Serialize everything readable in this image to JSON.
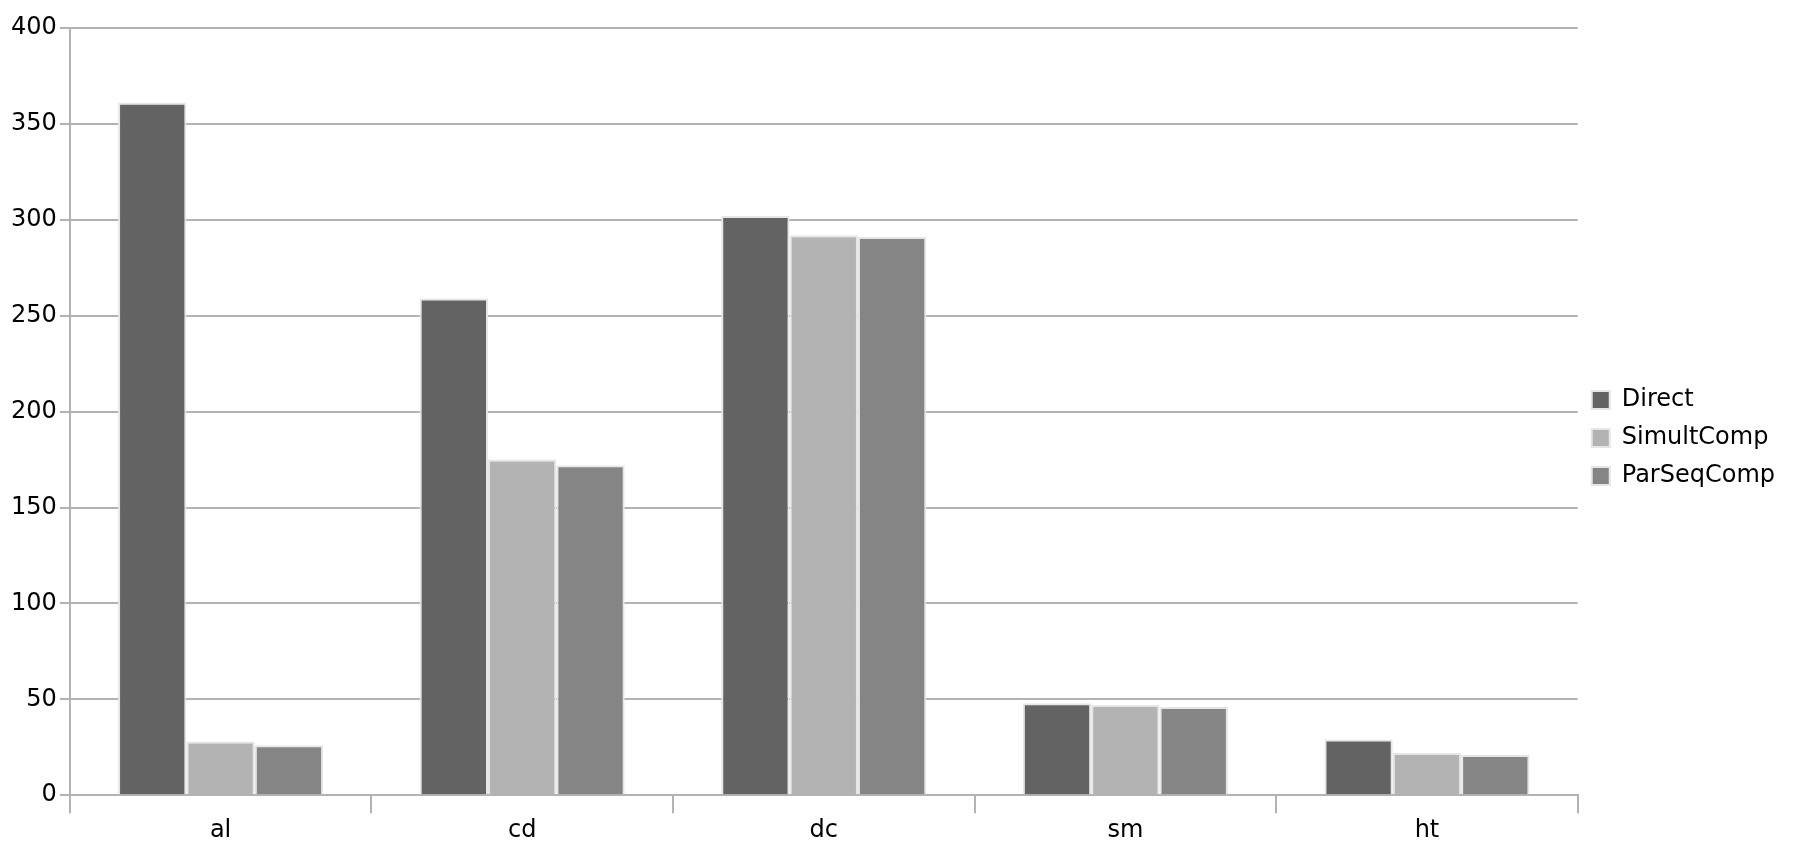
{
  "chart_data": {
    "type": "bar",
    "categories": [
      "al",
      "cd",
      "dc",
      "sm",
      "ht"
    ],
    "series": [
      {
        "name": "Direct",
        "color": "#636363",
        "values": [
          361,
          259,
          302,
          48,
          29
        ]
      },
      {
        "name": "SimultComp",
        "color": "#b3b3b3",
        "values": [
          28,
          175,
          292,
          47,
          22
        ]
      },
      {
        "name": "ParSeqComp",
        "color": "#858585",
        "values": [
          26,
          172,
          291,
          46,
          21
        ]
      }
    ],
    "ylim": [
      0,
      400
    ],
    "yticks": [
      0,
      50,
      100,
      150,
      200,
      250,
      300,
      350,
      400
    ],
    "grid": "y",
    "legend": "right"
  }
}
